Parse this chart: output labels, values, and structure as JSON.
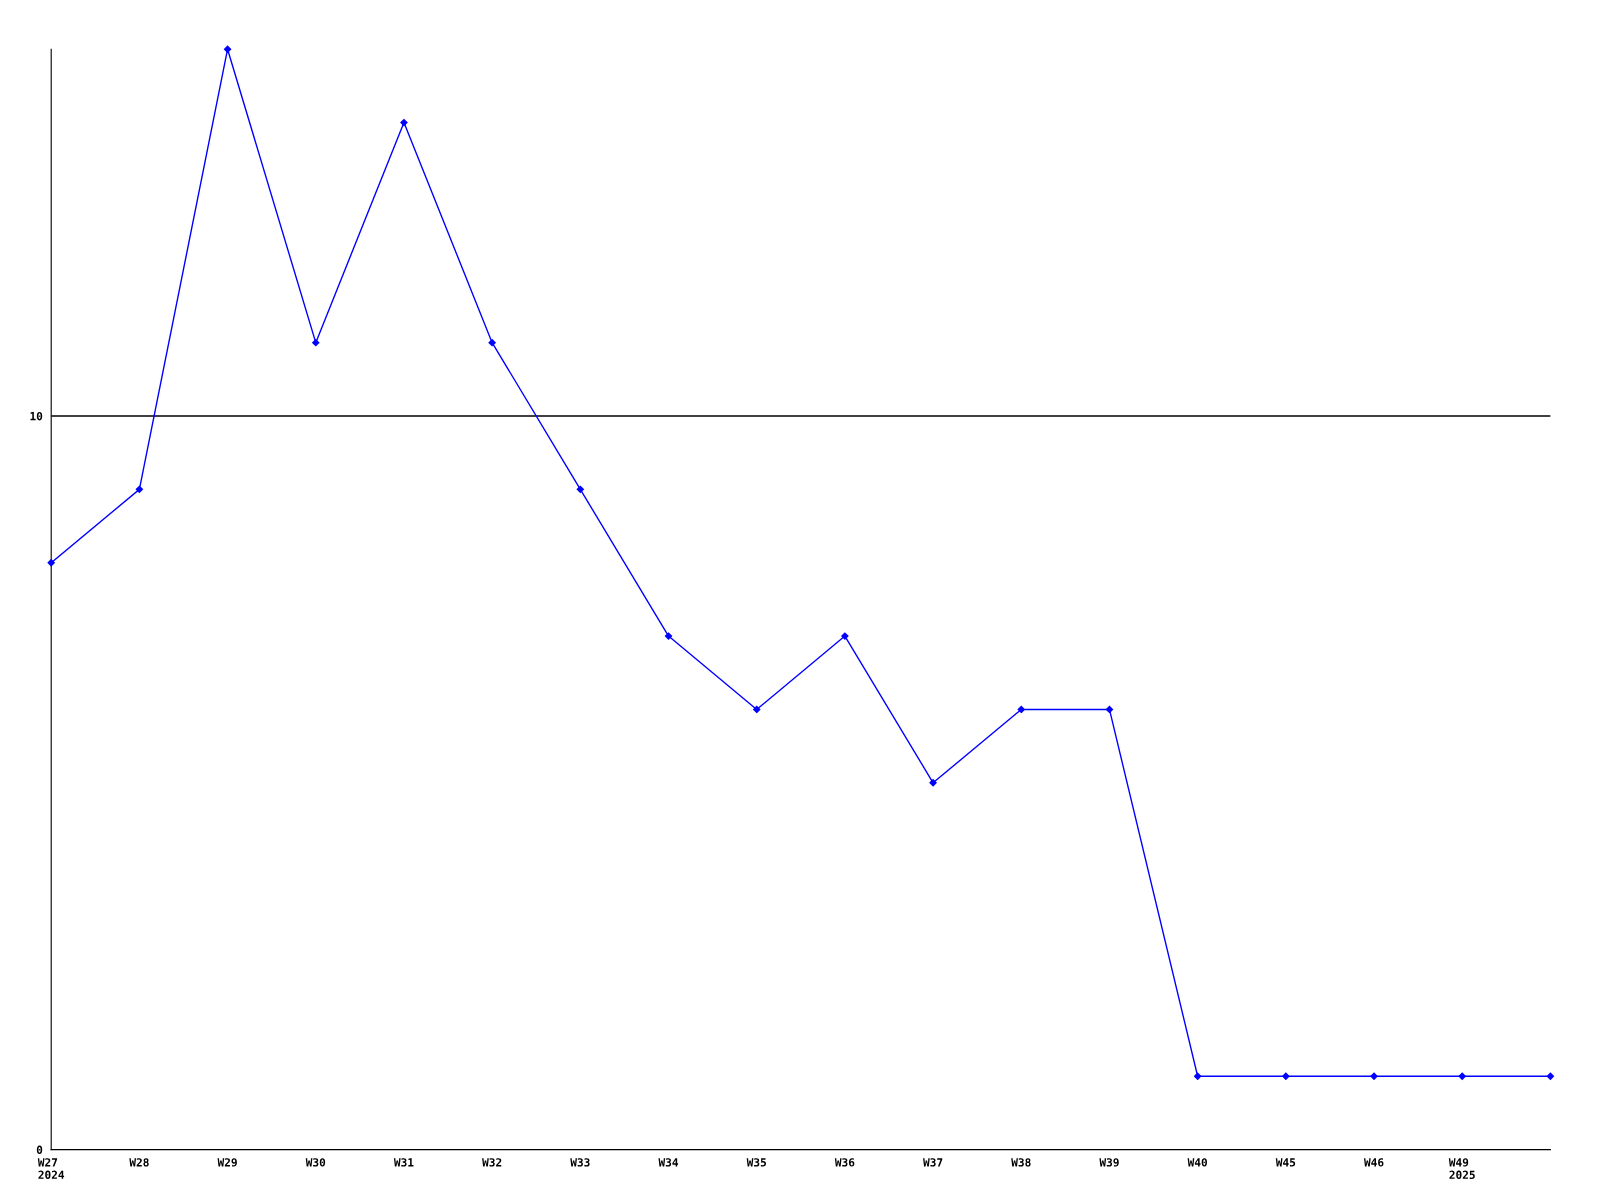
{
  "chart_data": {
    "type": "line",
    "categories": [
      "W27\n2024",
      "W28",
      "W29",
      "W30",
      "W31",
      "W32",
      "W33",
      "W34",
      "W35",
      "W36",
      "W37",
      "W38",
      "W39",
      "W40",
      "W45",
      "W46",
      "W49\n2025",
      null
    ],
    "series": [
      {
        "color": "#0000ff",
        "values": [
          8,
          9,
          15,
          11,
          14,
          11,
          9,
          7,
          6,
          7,
          5,
          6,
          6,
          1,
          1,
          1,
          1,
          1
        ]
      }
    ],
    "ylim": [
      0,
      15
    ],
    "yticks": [
      0,
      10
    ],
    "grid": "y",
    "marker": "diamond",
    "line_style": "solid"
  }
}
